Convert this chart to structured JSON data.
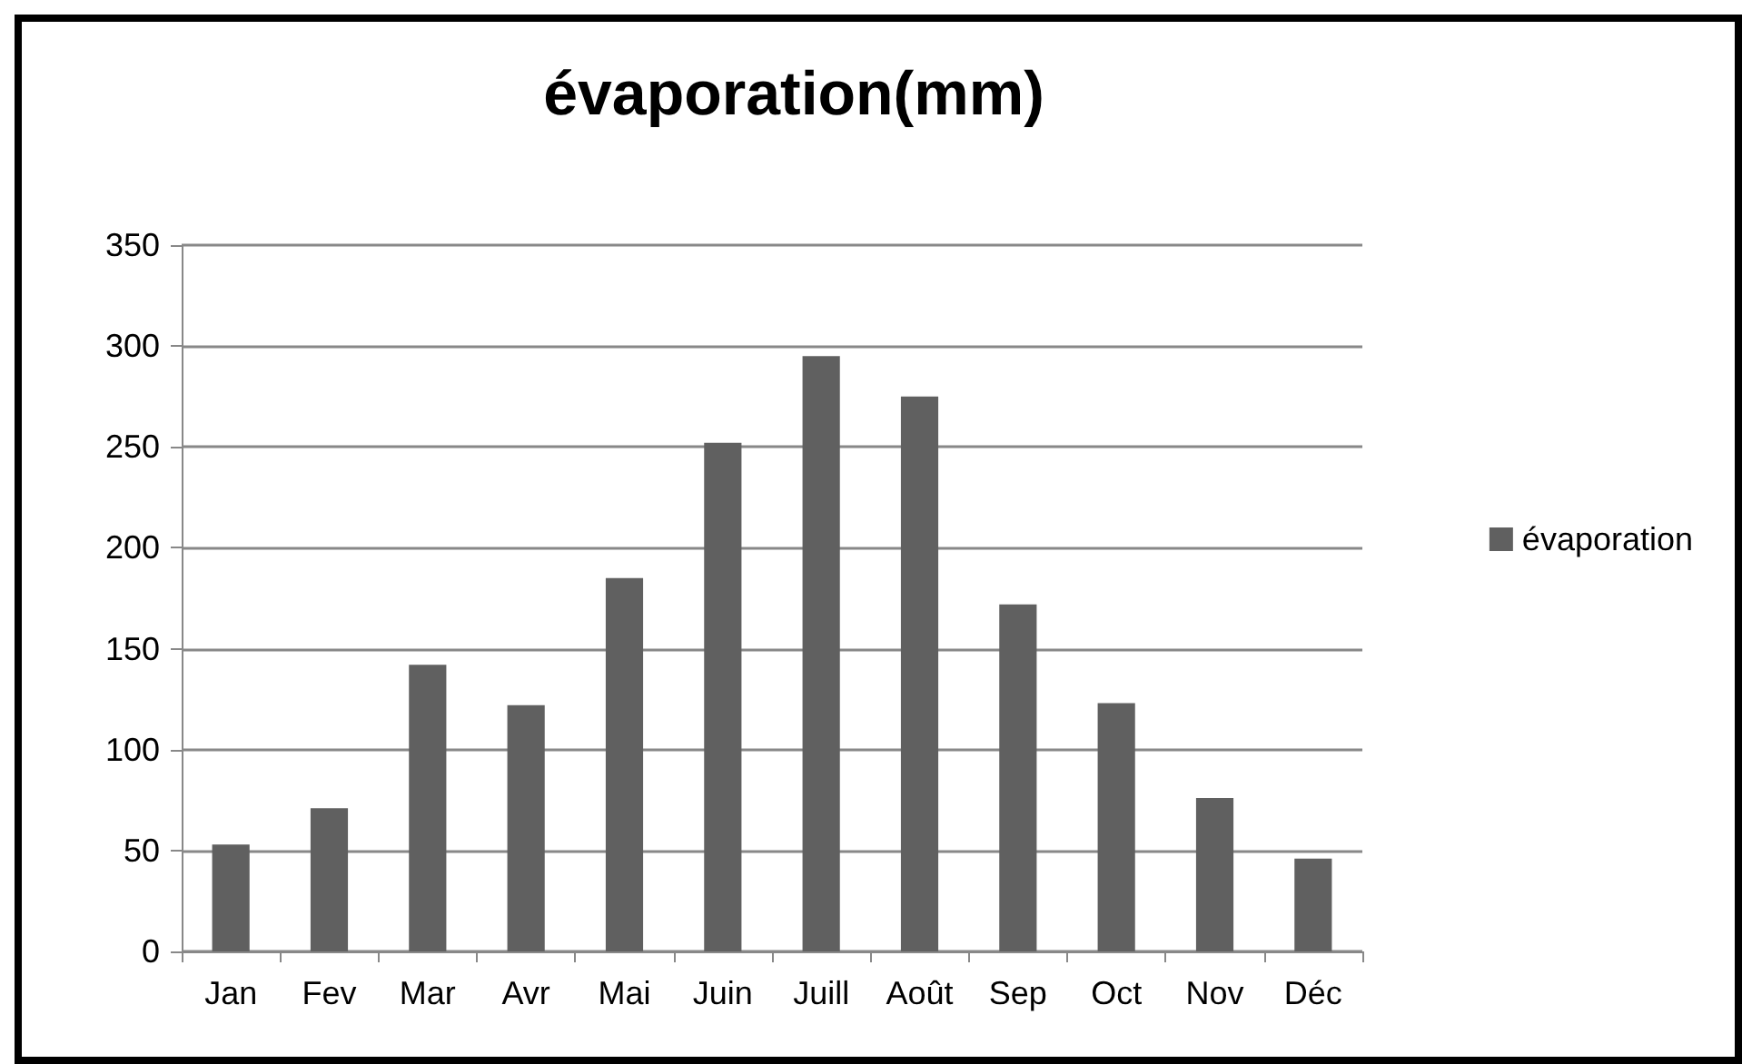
{
  "chart_data": {
    "type": "bar",
    "title": "évaporation(mm)",
    "categories": [
      "Jan",
      "Fev",
      "Mar",
      "Avr",
      "Mai",
      "Juin",
      "Juill",
      "Août",
      "Sep",
      "Oct",
      "Nov",
      "Déc"
    ],
    "series": [
      {
        "name": "évaporation",
        "color": "#606060",
        "values": [
          53,
          71,
          142,
          122,
          185,
          252,
          295,
          275,
          172,
          123,
          76,
          46
        ]
      }
    ],
    "ylim": [
      0,
      350
    ],
    "yticks": [
      0,
      50,
      100,
      150,
      200,
      250,
      300,
      350
    ],
    "grid": "y",
    "legend": "right"
  }
}
